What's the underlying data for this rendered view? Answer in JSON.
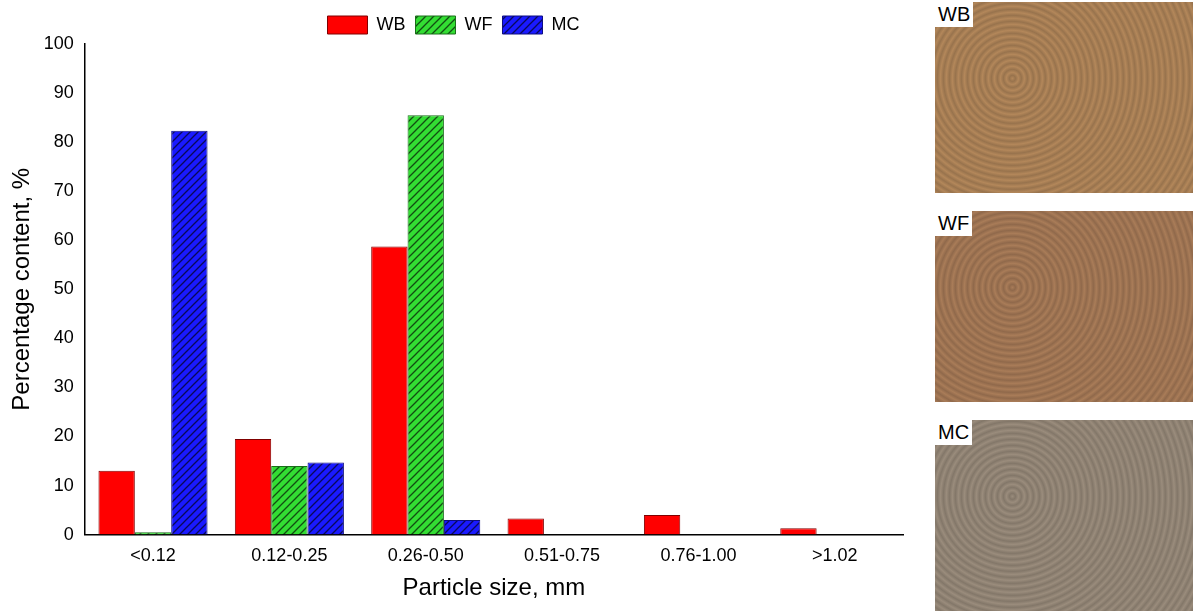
{
  "chart_data": {
    "type": "bar",
    "x_label": "Particle size, mm",
    "y_label": "Percentage content, %",
    "categories": [
      "<0.12",
      "0.12-0.25",
      "0.26-0.50",
      "0.51-0.75",
      "0.76-1.00",
      ">1.02"
    ],
    "series": [
      {
        "name": "WB",
        "color": "#ff0000",
        "values": [
          13,
          19.5,
          58.7,
          3.3,
          4,
          1.3
        ]
      },
      {
        "name": "WF",
        "color": "#33dd33",
        "values": [
          0.5,
          14,
          85.5,
          0,
          0,
          0
        ]
      },
      {
        "name": "MC",
        "color": "#1a1aff",
        "values": [
          82.3,
          14.7,
          3,
          0,
          0,
          0
        ]
      }
    ],
    "ylim": [
      0,
      100
    ],
    "yticks": [
      0,
      10,
      20,
      30,
      40,
      50,
      60,
      70,
      80,
      90,
      100
    ],
    "grid": false,
    "legend": "top"
  },
  "photo_labels": [
    "WB",
    "WF",
    "MC"
  ]
}
